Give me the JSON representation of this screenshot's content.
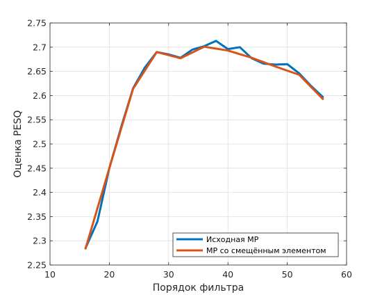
{
  "chart_data": {
    "type": "line",
    "xlabel": "Порядок фильтра",
    "ylabel": "Оценка PESQ",
    "xlim": [
      10,
      60
    ],
    "ylim": [
      2.25,
      2.75
    ],
    "xticks": [
      10,
      20,
      30,
      40,
      50,
      60
    ],
    "yticks": [
      2.25,
      2.3,
      2.35,
      2.4,
      2.45,
      2.5,
      2.55,
      2.6,
      2.65,
      2.7,
      2.75
    ],
    "xtick_labels": [
      "10",
      "20",
      "30",
      "40",
      "50",
      "60"
    ],
    "ytick_labels": [
      "2.25",
      "2.3",
      "2.35",
      "2.4",
      "2.45",
      "2.5",
      "2.55",
      "2.6",
      "2.65",
      "2.7",
      "2.75"
    ],
    "grid": true,
    "legend_position": "bottom-right",
    "series": [
      {
        "name": "Исходная MP",
        "color": "#0072BD",
        "x": [
          16,
          18,
          20,
          22,
          24,
          26,
          28,
          30,
          32,
          34,
          36,
          38,
          40,
          42,
          44,
          46,
          48,
          50,
          52,
          54,
          56
        ],
        "y": [
          2.285,
          2.34,
          2.45,
          2.535,
          2.615,
          2.658,
          2.69,
          2.685,
          2.678,
          2.695,
          2.702,
          2.713,
          2.696,
          2.7,
          2.677,
          2.666,
          2.664,
          2.665,
          2.646,
          2.62,
          2.597
        ]
      },
      {
        "name": "MP со смещённым элементом",
        "color": "#D95319",
        "x": [
          16,
          20,
          24,
          28,
          32,
          36,
          40,
          44,
          48,
          52,
          56
        ],
        "y": [
          2.284,
          2.45,
          2.614,
          2.69,
          2.677,
          2.701,
          2.693,
          2.678,
          2.66,
          2.643,
          2.593
        ]
      }
    ]
  }
}
